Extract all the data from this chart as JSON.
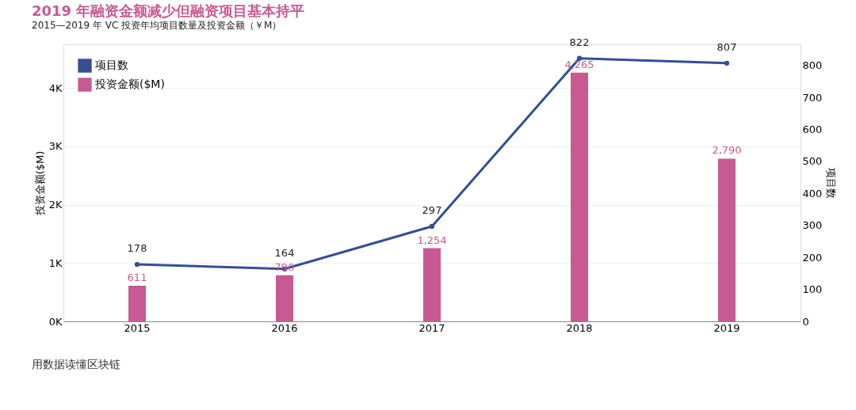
{
  "chart_data": {
    "type": "bar",
    "title": "2019 年融资金额减少但融资项目基本持平",
    "subtitle": "2015—2019 年 VC 投资年均项目数量及投资金额（￥M）",
    "categories": [
      "2015",
      "2016",
      "2017",
      "2018",
      "2019"
    ],
    "series": [
      {
        "name": "项目数",
        "type": "line",
        "axis": "y2",
        "color": "#354f8f",
        "values": [
          178,
          164,
          297,
          822,
          807
        ],
        "value_labels": [
          "178",
          "164",
          "297",
          "822",
          "807"
        ]
      },
      {
        "name": "投资金额($M)",
        "color": "#c85a93",
        "values": [
          611,
          790,
          1254,
          4265,
          2790
        ],
        "value_labels": [
          "611",
          "790",
          "1,254",
          "4,265",
          "2,790"
        ]
      }
    ],
    "ylabel": "投资金额($M)",
    "y2label": "项目数",
    "ylim": [
      0,
      4750
    ],
    "yticks": [
      {
        "value": 0,
        "label": "0K"
      },
      {
        "value": 1000,
        "label": "1K"
      },
      {
        "value": 2000,
        "label": "2K"
      },
      {
        "value": 3000,
        "label": "3K"
      },
      {
        "value": 4000,
        "label": "4K"
      }
    ],
    "y2lim": [
      0,
      866
    ],
    "y2ticks": [
      0,
      100,
      200,
      300,
      400,
      500,
      600,
      700,
      800
    ],
    "grid": "y",
    "legend": "top left",
    "marker": "circle",
    "annotations": [
      "用数据读懂区块链"
    ]
  }
}
